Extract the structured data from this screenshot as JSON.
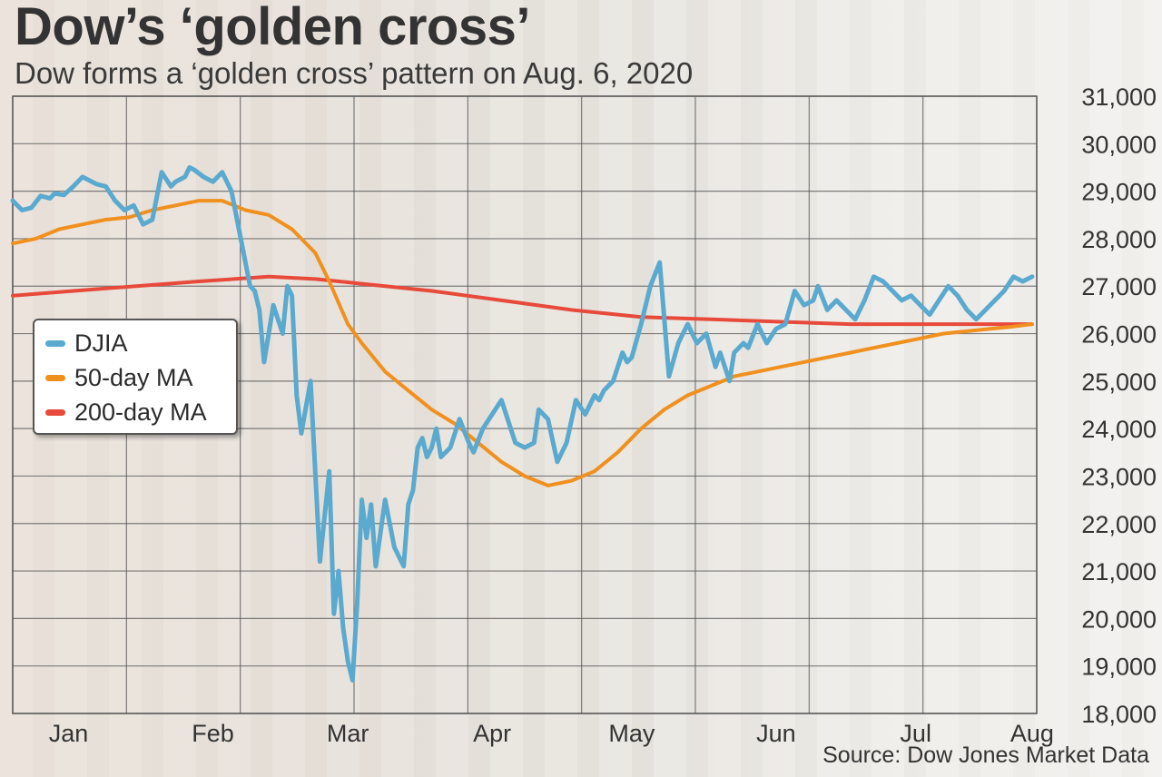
{
  "chart_data": {
    "type": "line",
    "title": "Dow’s ‘golden cross’",
    "subtitle": "Dow forms a ‘golden cross’ pattern on Aug. 6, 2020",
    "source": "Source: Dow Jones Market Data",
    "xlabel": "",
    "ylabel": "",
    "x_tick_labels": [
      "Jan",
      "Feb",
      "Mar",
      "Apr",
      "May",
      "Jun",
      "Jul",
      "Aug"
    ],
    "x_tick_positions_days": [
      12,
      43,
      72,
      103,
      133,
      164,
      194,
      219
    ],
    "y_tick_labels": [
      "31,000",
      "30,000",
      "29,000",
      "28,000",
      "27,000",
      "26,000",
      "25,000",
      "24,000",
      "23,000",
      "22,000",
      "21,000",
      "20,000",
      "19,000",
      "18,000"
    ],
    "y_ticks": [
      31000,
      30000,
      29000,
      28000,
      27000,
      26000,
      25000,
      24000,
      23000,
      22000,
      21000,
      20000,
      19000,
      18000
    ],
    "xlim_days": [
      0,
      220
    ],
    "ylim": [
      18000,
      31000
    ],
    "grid": true,
    "legend_position": "left-middle",
    "series": [
      {
        "name": "DJIA",
        "color": "#5aa9cf",
        "x": [
          0,
          2,
          4,
          6,
          8,
          9,
          11,
          13,
          15,
          17,
          18,
          20,
          22,
          24,
          26,
          28,
          30,
          32,
          34,
          35,
          36,
          37,
          38,
          39,
          41,
          43,
          45,
          47,
          49,
          51,
          52,
          53,
          54,
          56,
          58,
          59,
          60,
          61,
          62,
          64,
          66,
          68,
          69,
          70,
          71,
          72,
          73,
          74,
          75,
          76,
          77,
          78,
          80,
          82,
          84,
          85,
          86,
          87,
          88,
          89,
          90,
          91,
          92,
          94,
          96,
          98,
          99,
          101,
          103,
          105,
          107,
          108,
          110,
          112,
          113,
          115,
          117,
          119,
          121,
          123,
          124,
          125,
          126,
          127,
          129,
          131,
          132,
          133,
          135,
          137,
          139,
          141,
          143,
          145,
          147,
          149,
          151,
          152,
          154,
          155,
          157,
          158,
          160,
          162,
          164,
          166,
          168,
          170,
          172,
          173,
          175,
          177,
          179,
          181,
          183,
          185,
          187,
          189,
          191,
          193,
          195,
          197,
          199,
          201,
          203,
          205,
          207,
          209,
          211,
          213,
          215,
          217,
          219
        ],
        "values": [
          28800,
          28600,
          28650,
          28900,
          28850,
          28950,
          28920,
          29100,
          29300,
          29200,
          29150,
          29100,
          28800,
          28600,
          28700,
          28300,
          28400,
          29400,
          29100,
          29200,
          29250,
          29300,
          29500,
          29450,
          29300,
          29200,
          29400,
          29000,
          28000,
          27000,
          26900,
          26500,
          25400,
          26600,
          26000,
          27000,
          26800,
          24700,
          23900,
          25000,
          21200,
          23100,
          20100,
          21000,
          19800,
          19100,
          18700,
          20300,
          22500,
          21700,
          22400,
          21100,
          22500,
          21500,
          21100,
          22400,
          22700,
          23600,
          23800,
          23400,
          23600,
          24000,
          23400,
          23600,
          24200,
          23700,
          23500,
          24000,
          24300,
          24600,
          24000,
          23700,
          23600,
          23700,
          24400,
          24200,
          23300,
          23700,
          24600,
          24300,
          24500,
          24700,
          24600,
          24800,
          25000,
          25600,
          25400,
          25500,
          26200,
          27000,
          27500,
          25100,
          25800,
          26200,
          25800,
          26000,
          25300,
          25600,
          25000,
          25600,
          25800,
          25700,
          26200,
          25800,
          26100,
          26200,
          26900,
          26600,
          26700,
          27000,
          26500,
          26700,
          26500,
          26300,
          26700,
          27200,
          27100,
          26900,
          26700,
          26800,
          26600,
          26400,
          26700,
          27000,
          26800,
          26500,
          26300,
          26500,
          26700,
          26900,
          27200,
          27100,
          27200
        ]
      },
      {
        "name": "50-day MA",
        "color": "#f0901e",
        "x": [
          0,
          5,
          10,
          15,
          20,
          25,
          30,
          35,
          40,
          45,
          50,
          55,
          60,
          65,
          68,
          72,
          75,
          80,
          85,
          90,
          95,
          100,
          105,
          110,
          115,
          120,
          125,
          130,
          135,
          140,
          145,
          150,
          155,
          160,
          165,
          170,
          175,
          180,
          185,
          190,
          195,
          200,
          205,
          210,
          215,
          219
        ],
        "values": [
          27900,
          28000,
          28200,
          28300,
          28400,
          28450,
          28600,
          28700,
          28800,
          28800,
          28600,
          28500,
          28200,
          27700,
          27100,
          26200,
          25800,
          25200,
          24800,
          24400,
          24100,
          23700,
          23300,
          23000,
          22800,
          22900,
          23100,
          23500,
          24000,
          24400,
          24700,
          24900,
          25100,
          25200,
          25300,
          25400,
          25500,
          25600,
          25700,
          25800,
          25900,
          26000,
          26050,
          26100,
          26150,
          26200
        ]
      },
      {
        "name": "200-day MA",
        "color": "#e74a3b",
        "x": [
          0,
          20,
          40,
          55,
          65,
          75,
          90,
          105,
          120,
          135,
          150,
          165,
          180,
          195,
          205,
          215,
          219
        ],
        "values": [
          26800,
          26950,
          27100,
          27200,
          27150,
          27050,
          26900,
          26700,
          26500,
          26350,
          26300,
          26250,
          26200,
          26200,
          26200,
          26200,
          26200
        ]
      }
    ]
  }
}
